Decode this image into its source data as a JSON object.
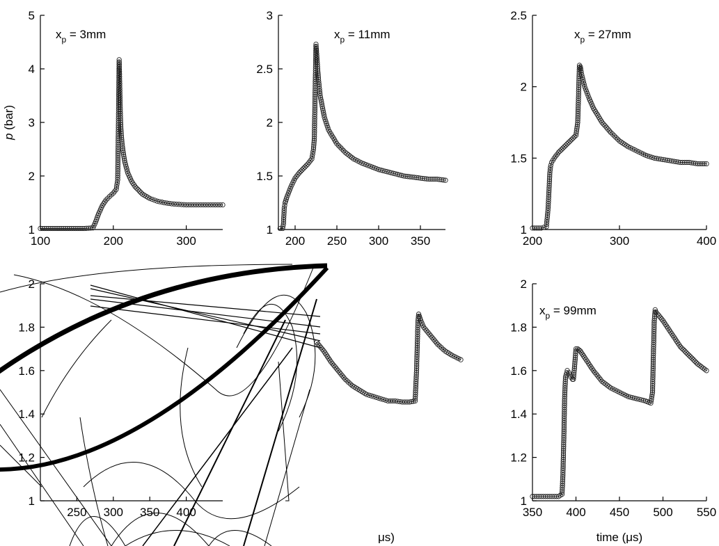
{
  "chart_data": [
    {
      "type": "scatter",
      "panel": "top-left",
      "annotation": {
        "main": "x",
        "sub": "p",
        "rest": " = 3mm"
      },
      "ylabel": {
        "italic": "p",
        "rest": " (bar)"
      },
      "xlabel": "",
      "xlim": [
        100,
        350
      ],
      "ylim": [
        1,
        5
      ],
      "xticks": [
        100,
        200,
        300
      ],
      "yticks": [
        1,
        2,
        3,
        4,
        5
      ],
      "series": [
        {
          "x": [
            100,
            120,
            140,
            160,
            172,
            176,
            180,
            185,
            190,
            195,
            200,
            204,
            206,
            207,
            208,
            208.5,
            209,
            209.5,
            210,
            211,
            212,
            214,
            216,
            220,
            225,
            230,
            240,
            250,
            260,
            270,
            280,
            290,
            300,
            310,
            320,
            330,
            340,
            350
          ],
          "y": [
            1.02,
            1.02,
            1.02,
            1.02,
            1.03,
            1.15,
            1.3,
            1.45,
            1.55,
            1.62,
            1.68,
            1.75,
            1.93,
            2.95,
            4.17,
            3.9,
            3.55,
            3.25,
            3.0,
            2.75,
            2.6,
            2.4,
            2.25,
            2.05,
            1.9,
            1.8,
            1.66,
            1.58,
            1.53,
            1.5,
            1.48,
            1.47,
            1.46,
            1.46,
            1.46,
            1.46,
            1.46,
            1.46
          ]
        }
      ]
    },
    {
      "type": "scatter",
      "panel": "top-middle",
      "annotation": {
        "main": "x",
        "sub": "p",
        "rest": " = 11mm"
      },
      "xlabel": "",
      "xlim": [
        180,
        380
      ],
      "ylim": [
        1,
        3
      ],
      "xticks": [
        200,
        250,
        300,
        350
      ],
      "yticks": [
        1,
        1.5,
        2,
        2.5,
        3
      ],
      "series": [
        {
          "x": [
            182,
            185,
            186,
            187,
            188,
            190,
            195,
            200,
            205,
            210,
            215,
            220,
            222,
            223,
            224,
            225,
            226,
            227,
            228,
            230,
            235,
            240,
            250,
            260,
            270,
            280,
            290,
            300,
            310,
            320,
            330,
            340,
            350,
            360,
            370,
            380
          ],
          "y": [
            1.01,
            1.01,
            1.05,
            1.2,
            1.25,
            1.3,
            1.4,
            1.48,
            1.53,
            1.57,
            1.61,
            1.66,
            1.75,
            1.85,
            2.3,
            2.73,
            2.62,
            2.5,
            2.4,
            2.25,
            2.05,
            1.93,
            1.8,
            1.72,
            1.66,
            1.62,
            1.59,
            1.56,
            1.54,
            1.52,
            1.5,
            1.49,
            1.48,
            1.47,
            1.47,
            1.46
          ]
        }
      ]
    },
    {
      "type": "scatter",
      "panel": "top-right",
      "annotation": {
        "main": "x",
        "sub": "p",
        "rest": " = 27mm"
      },
      "xlabel": "",
      "xlim": [
        200,
        400
      ],
      "ylim": [
        1,
        2.5
      ],
      "xticks": [
        200,
        300,
        400
      ],
      "yticks": [
        1,
        1.5,
        2,
        2.5
      ],
      "series": [
        {
          "x": [
            200,
            210,
            216,
            218,
            220,
            221,
            222,
            225,
            230,
            235,
            240,
            245,
            250,
            252,
            253,
            254,
            255,
            256,
            258,
            260,
            265,
            270,
            280,
            290,
            300,
            310,
            320,
            330,
            340,
            350,
            360,
            370,
            380,
            390,
            400
          ],
          "y": [
            1.01,
            1.01,
            1.02,
            1.15,
            1.4,
            1.45,
            1.47,
            1.5,
            1.54,
            1.57,
            1.6,
            1.63,
            1.66,
            1.75,
            1.95,
            2.15,
            2.14,
            2.1,
            2.05,
            2.0,
            1.92,
            1.85,
            1.75,
            1.68,
            1.62,
            1.58,
            1.55,
            1.52,
            1.5,
            1.49,
            1.48,
            1.47,
            1.47,
            1.46,
            1.46
          ]
        }
      ]
    },
    {
      "type": "scatter",
      "panel": "bottom-middle",
      "annotation": {
        "main": "",
        "sub": "",
        "rest": ""
      },
      "xlabel": "μs)",
      "xlim": [
        200,
        450
      ],
      "ylim": [
        1,
        2
      ],
      "xticks": [
        250,
        300,
        350,
        400
      ],
      "yticks": [
        1,
        1.2,
        1.4,
        1.6,
        1.8,
        2
      ],
      "series": [
        {
          "x": [
            460,
            470,
            480,
            490,
            500,
            510,
            520,
            530,
            540,
            550,
            560,
            570,
            580,
            590,
            598,
            600,
            602,
            603,
            604,
            605,
            606,
            610,
            620,
            630,
            640,
            650,
            662
          ],
          "y": [
            1.73,
            1.69,
            1.64,
            1.6,
            1.56,
            1.53,
            1.51,
            1.49,
            1.48,
            1.47,
            1.46,
            1.46,
            1.455,
            1.455,
            1.46,
            1.6,
            1.83,
            1.86,
            1.85,
            1.84,
            1.83,
            1.8,
            1.76,
            1.72,
            1.69,
            1.67,
            1.65
          ]
        }
      ]
    },
    {
      "type": "scatter",
      "panel": "bottom-right",
      "annotation": {
        "main": "x",
        "sub": "p",
        "rest": " = 99mm"
      },
      "xlabel": "time (μs)",
      "xlim": [
        350,
        550
      ],
      "ylim": [
        1,
        2
      ],
      "xticks": [
        350,
        400,
        450,
        500,
        550
      ],
      "yticks": [
        1,
        1.2,
        1.4,
        1.6,
        1.8,
        2
      ],
      "series": [
        {
          "x": [
            350,
            360,
            370,
            380,
            384,
            385,
            386,
            387,
            388,
            390,
            392,
            394,
            396,
            397,
            398,
            399,
            400,
            402,
            405,
            410,
            420,
            430,
            440,
            450,
            460,
            470,
            480,
            486,
            488,
            489,
            490,
            491,
            492,
            494,
            500,
            510,
            520,
            530,
            540,
            550
          ],
          "y": [
            1.02,
            1.02,
            1.02,
            1.02,
            1.03,
            1.12,
            1.28,
            1.48,
            1.57,
            1.6,
            1.59,
            1.57,
            1.56,
            1.56,
            1.6,
            1.65,
            1.7,
            1.7,
            1.69,
            1.66,
            1.6,
            1.55,
            1.52,
            1.5,
            1.48,
            1.47,
            1.46,
            1.45,
            1.5,
            1.68,
            1.83,
            1.88,
            1.87,
            1.86,
            1.83,
            1.77,
            1.71,
            1.67,
            1.63,
            1.6
          ]
        }
      ]
    }
  ]
}
